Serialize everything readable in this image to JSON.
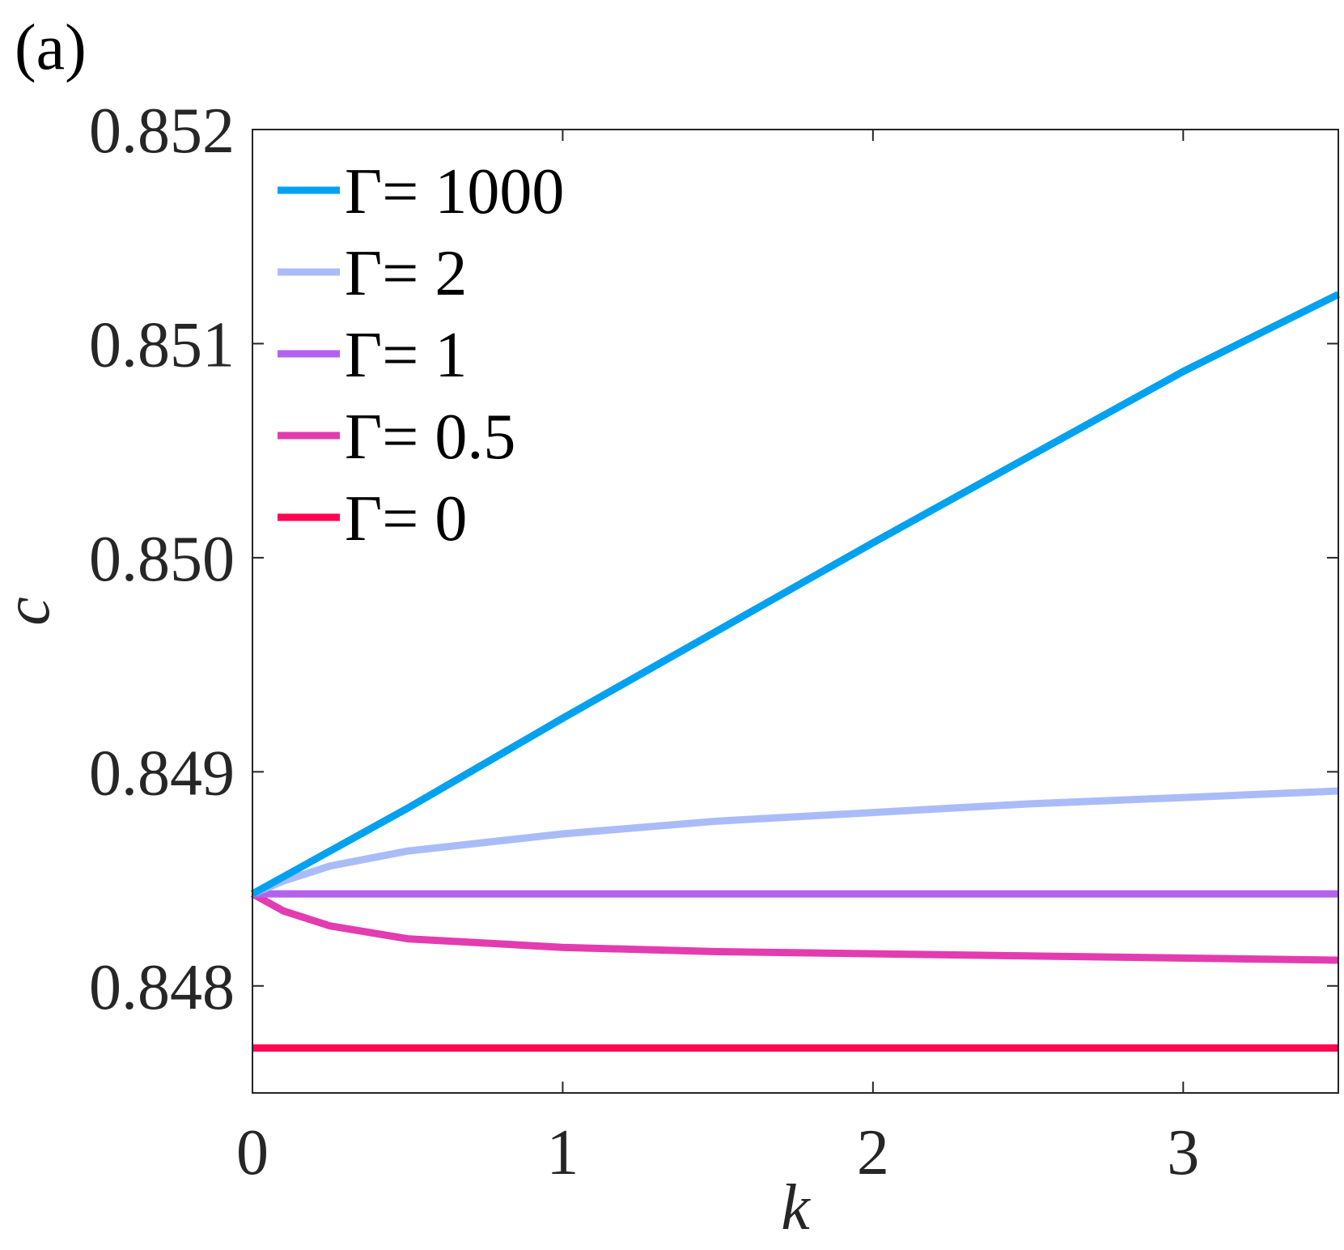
{
  "panel_label": "(a)",
  "chart_data": {
    "type": "line",
    "title": "",
    "xlabel": "k",
    "ylabel": "c",
    "xlim": [
      0,
      3.5
    ],
    "ylim": [
      0.8475,
      0.852
    ],
    "xticks": [
      0,
      1,
      2,
      3
    ],
    "xtick_labels": [
      "0",
      "1",
      "2",
      "3"
    ],
    "yticks": [
      0.848,
      0.849,
      0.85,
      0.851,
      0.852
    ],
    "ytick_labels": [
      "0.848",
      "0.849",
      "0.850",
      "0.851",
      "0.852"
    ],
    "grid": false,
    "legend_position": "top-left",
    "series": [
      {
        "name": "Γ= 1000",
        "color": "#00A2F0",
        "x": [
          0,
          0.5,
          1,
          1.5,
          2,
          2.5,
          3,
          3.5
        ],
        "y": [
          0.84843,
          0.84883,
          0.84925,
          0.84966,
          0.85007,
          0.85047,
          0.85087,
          0.85123
        ]
      },
      {
        "name": "Γ= 2",
        "color": "#AABCF8",
        "x": [
          0,
          0.1,
          0.25,
          0.5,
          1,
          1.5,
          2,
          2.5,
          3,
          3.5
        ],
        "y": [
          0.84843,
          0.84849,
          0.84856,
          0.84863,
          0.84871,
          0.84877,
          0.84881,
          0.84885,
          0.84888,
          0.84891
        ]
      },
      {
        "name": "Γ= 1",
        "color": "#B462EE",
        "x": [
          0,
          3.5
        ],
        "y": [
          0.84843,
          0.84843
        ]
      },
      {
        "name": "Γ= 0.5",
        "color": "#E33CB0",
        "x": [
          0,
          0.1,
          0.25,
          0.5,
          1,
          1.5,
          2,
          2.5,
          3,
          3.5
        ],
        "y": [
          0.84843,
          0.84835,
          0.84828,
          0.84822,
          0.84818,
          0.84816,
          0.84815,
          0.84814,
          0.84813,
          0.84812
        ]
      },
      {
        "name": "Γ= 0",
        "color": "#FF0551",
        "x": [
          0,
          3.5
        ],
        "y": [
          0.84771,
          0.84771
        ]
      }
    ]
  }
}
